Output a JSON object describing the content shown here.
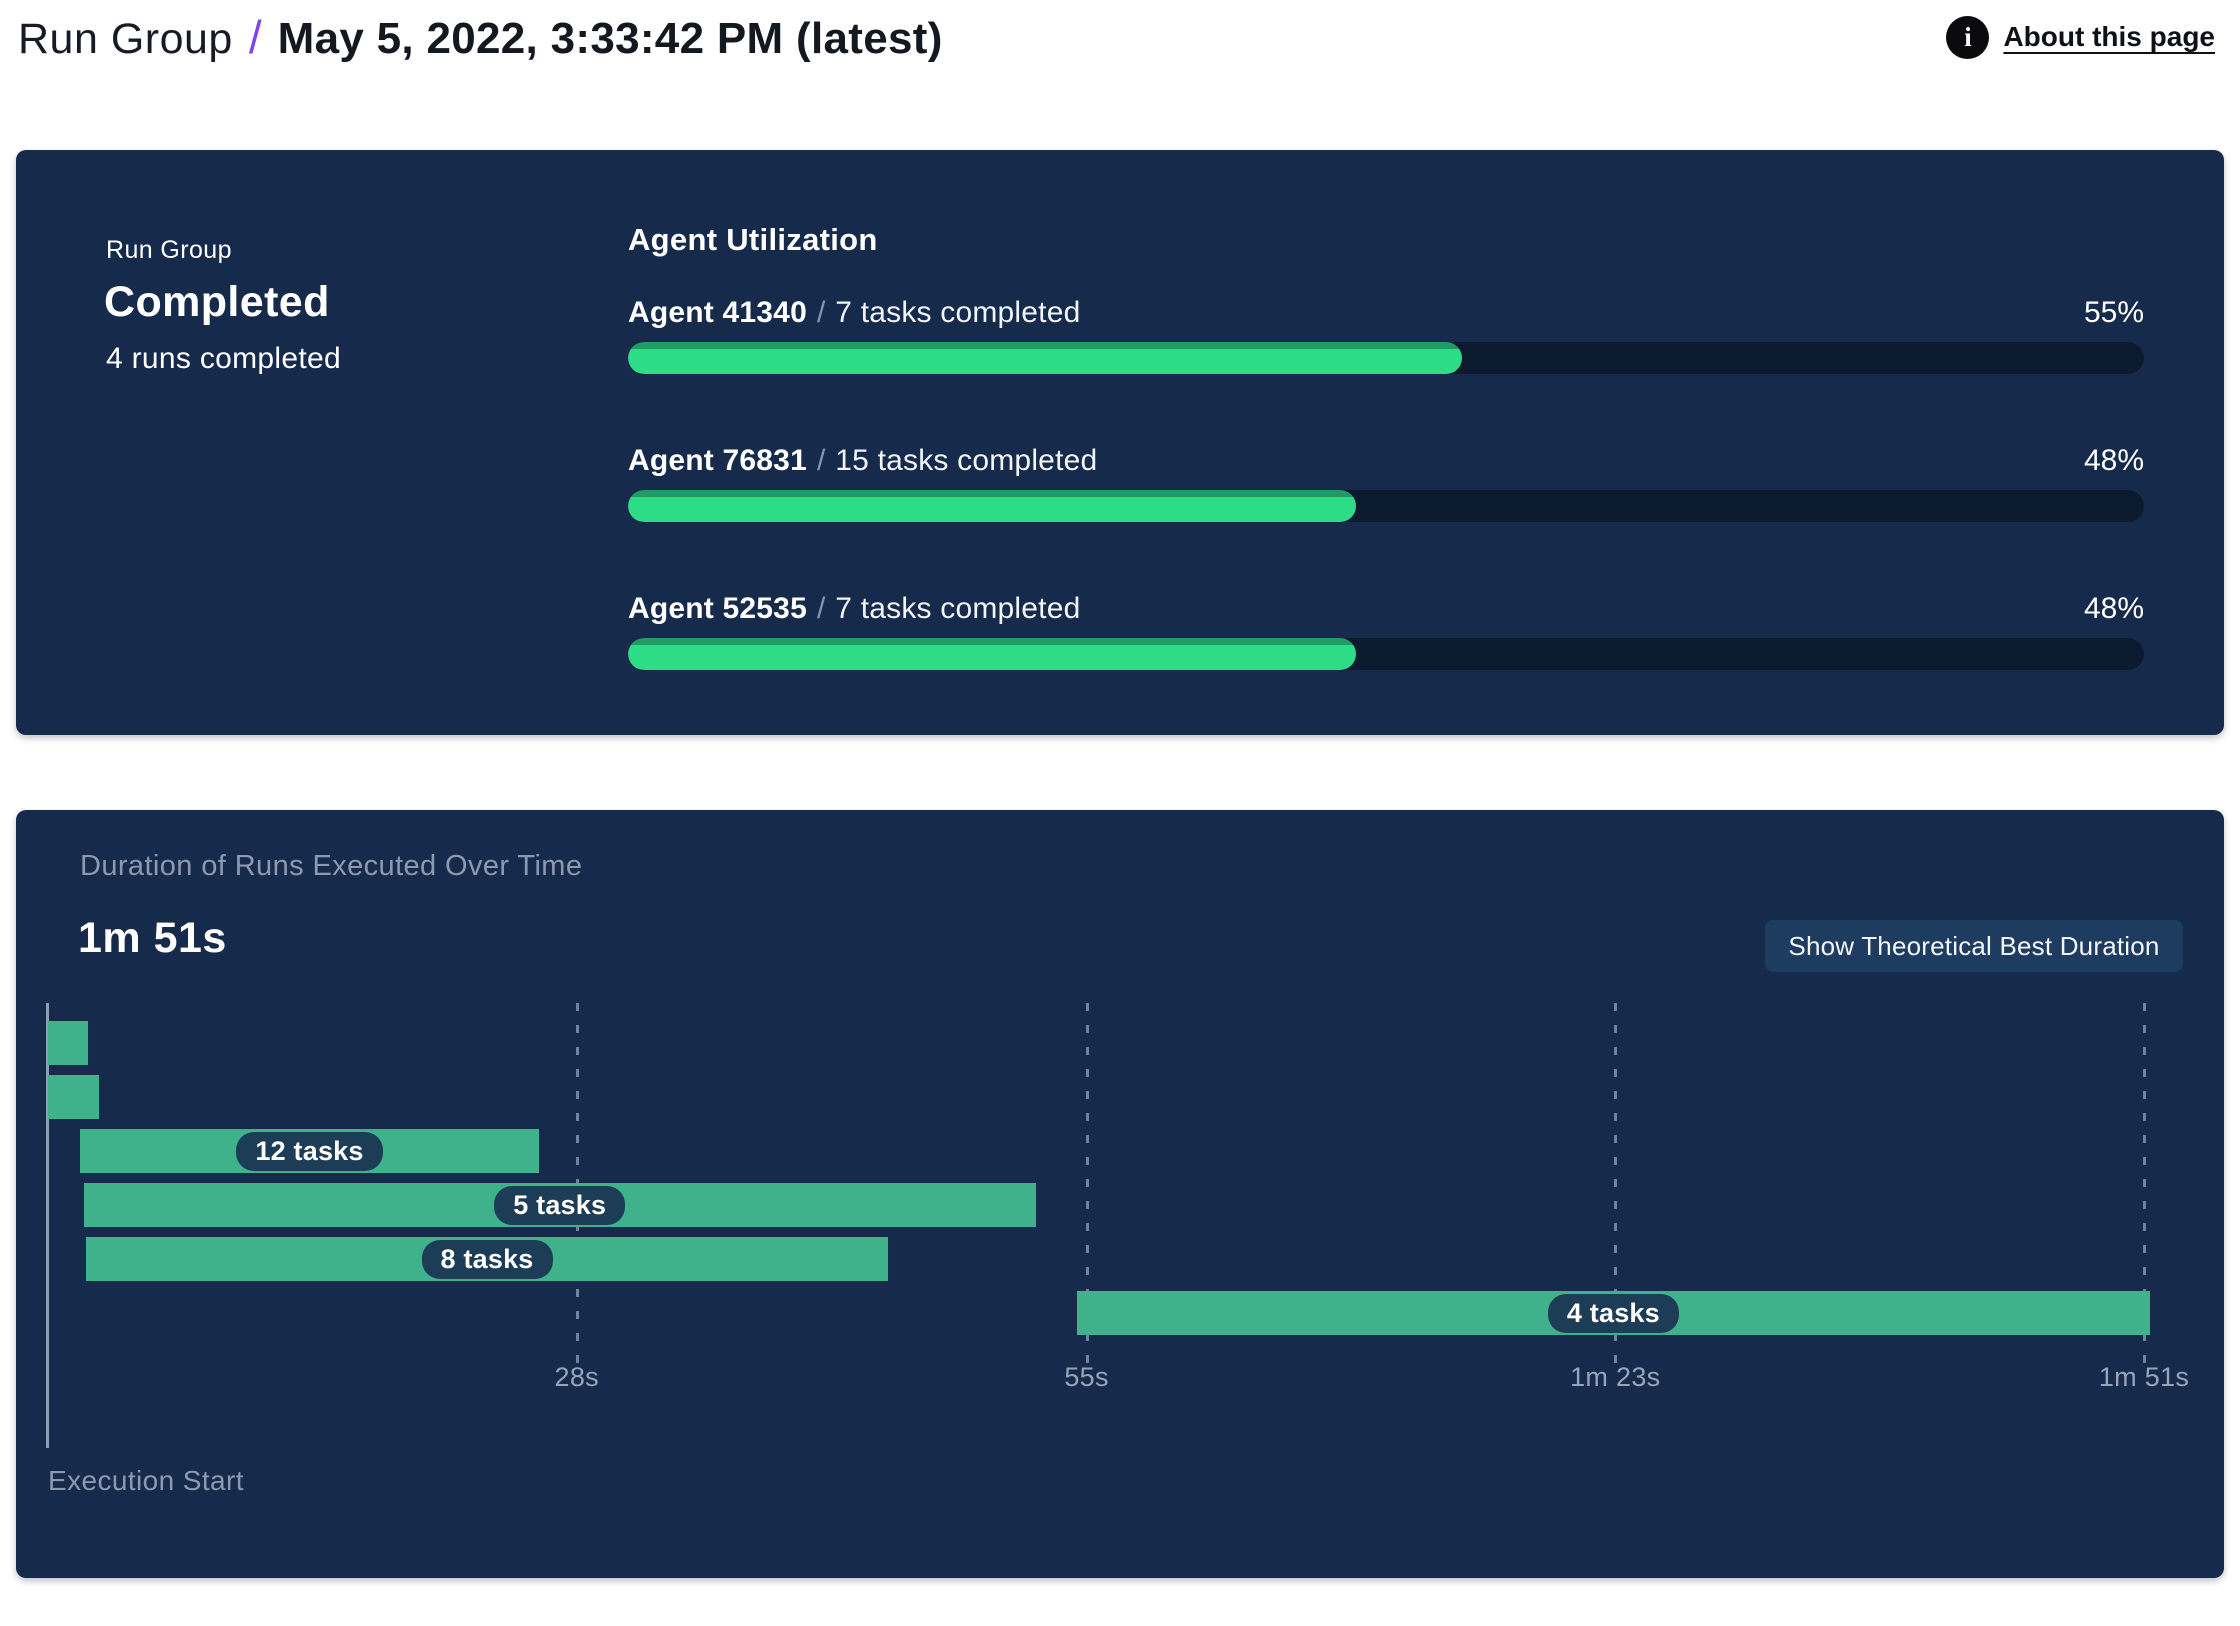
{
  "header": {
    "breadcrumb_root": "Run Group",
    "separator": "/",
    "title": "May 5, 2022, 3:33:42 PM (latest)",
    "about_link_label": "About this page",
    "info_icon_glyph": "i",
    "accent_color": "#7b45f0"
  },
  "summary_panel": {
    "eyebrow": "Run Group",
    "status": "Completed",
    "runs_completed": "4 runs completed",
    "section_title": "Agent Utilization",
    "label_separator": "/",
    "agents": [
      {
        "name": "Agent 41340",
        "tasks_completed": "7 tasks completed",
        "utilization_percent": 55,
        "percent_label": "55%"
      },
      {
        "name": "Agent 76831",
        "tasks_completed": "15 tasks completed",
        "utilization_percent": 48,
        "percent_label": "48%"
      },
      {
        "name": "Agent 52535",
        "tasks_completed": "7 tasks completed",
        "utilization_percent": 48,
        "percent_label": "48%"
      }
    ],
    "colors": {
      "panel_bg": "#162a4b",
      "track": "#0c1a2f",
      "fill": "#2ddc87",
      "fill_edge": "#219a65"
    }
  },
  "duration_panel": {
    "title": "Duration of Runs Executed Over Time",
    "total_duration": "1m 51s",
    "button_label": "Show Theoretical Best Duration",
    "colors": {
      "bar": "#3fb28b",
      "chip_bg": "#1d3c56",
      "button_bg": "#1e3b60"
    }
  },
  "chart_data": {
    "type": "gantt",
    "title": "Duration of Runs Executed Over Time",
    "total_duration_label": "1m 51s",
    "axis": {
      "caption": "Execution Start",
      "unit": "seconds",
      "min_seconds": 0,
      "max_seconds": 111,
      "ticks": [
        {
          "seconds": 28,
          "label": "28s"
        },
        {
          "seconds": 55,
          "label": "55s"
        },
        {
          "seconds": 83,
          "label": "1m 23s"
        },
        {
          "seconds": 111,
          "label": "1m 51s"
        }
      ],
      "gridlines": "dashed-vertical"
    },
    "runs": [
      {
        "row": 1,
        "start_seconds": 0,
        "end_seconds": 2.1,
        "label": ""
      },
      {
        "row": 2,
        "start_seconds": 0,
        "end_seconds": 2.7,
        "label": ""
      },
      {
        "row": 3,
        "start_seconds": 1.7,
        "end_seconds": 26.0,
        "label": "12 tasks"
      },
      {
        "row": 4,
        "start_seconds": 1.9,
        "end_seconds": 52.3,
        "label": "5 tasks"
      },
      {
        "row": 5,
        "start_seconds": 2.0,
        "end_seconds": 44.5,
        "label": "8 tasks"
      },
      {
        "row": 6,
        "start_seconds": 54.5,
        "end_seconds": 111.3,
        "label": "4 tasks"
      }
    ]
  }
}
